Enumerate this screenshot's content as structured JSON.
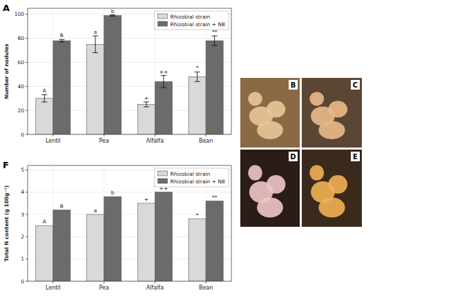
{
  "chart_data": [
    {
      "type": "bar",
      "panel": "A",
      "y_label": "Number of nodules",
      "categories": [
        "Lentil",
        "Pea",
        "Alfalfa",
        "Bean"
      ],
      "series": [
        {
          "name": "Rhizobial strain",
          "color": "#d9d9d9",
          "values": [
            30,
            75,
            25,
            48
          ],
          "errors": [
            3,
            7,
            2,
            4
          ],
          "annotations": [
            "A",
            "a",
            "+",
            "*"
          ]
        },
        {
          "name": "Rhizobial strain + N8",
          "color": "#6b6b6b",
          "values": [
            78,
            99,
            44,
            78
          ],
          "errors": [
            1,
            0.5,
            5,
            4
          ],
          "annotations": [
            "B",
            "b",
            "++",
            "**"
          ]
        }
      ],
      "ylim": [
        0,
        105
      ],
      "yticks": [
        0,
        20,
        40,
        60,
        80,
        100
      ],
      "grid": true,
      "legend": "upper right"
    },
    {
      "type": "bar",
      "panel": "F",
      "y_label": "Total N content (g 100g⁻¹)",
      "categories": [
        "Lentil",
        "Pea",
        "Alfalfa",
        "Bean"
      ],
      "series": [
        {
          "name": "Rhizobial strain",
          "color": "#d9d9d9",
          "values": [
            2.5,
            3.0,
            3.5,
            2.8
          ],
          "annotations": [
            "A",
            "a",
            "+",
            "*"
          ]
        },
        {
          "name": "Rhizobial strain + N8",
          "color": "#6b6b6b",
          "values": [
            3.2,
            3.8,
            4.0,
            3.6
          ],
          "annotations": [
            "B",
            "b",
            "++",
            "**"
          ]
        }
      ],
      "ylim": [
        0,
        5.2
      ],
      "yticks": [
        0,
        1,
        2,
        3,
        4,
        5
      ],
      "grid": true,
      "legend": "upper right"
    }
  ],
  "panels": [
    {
      "label": "B"
    },
    {
      "label": "C"
    },
    {
      "label": "D"
    },
    {
      "label": "E"
    }
  ]
}
